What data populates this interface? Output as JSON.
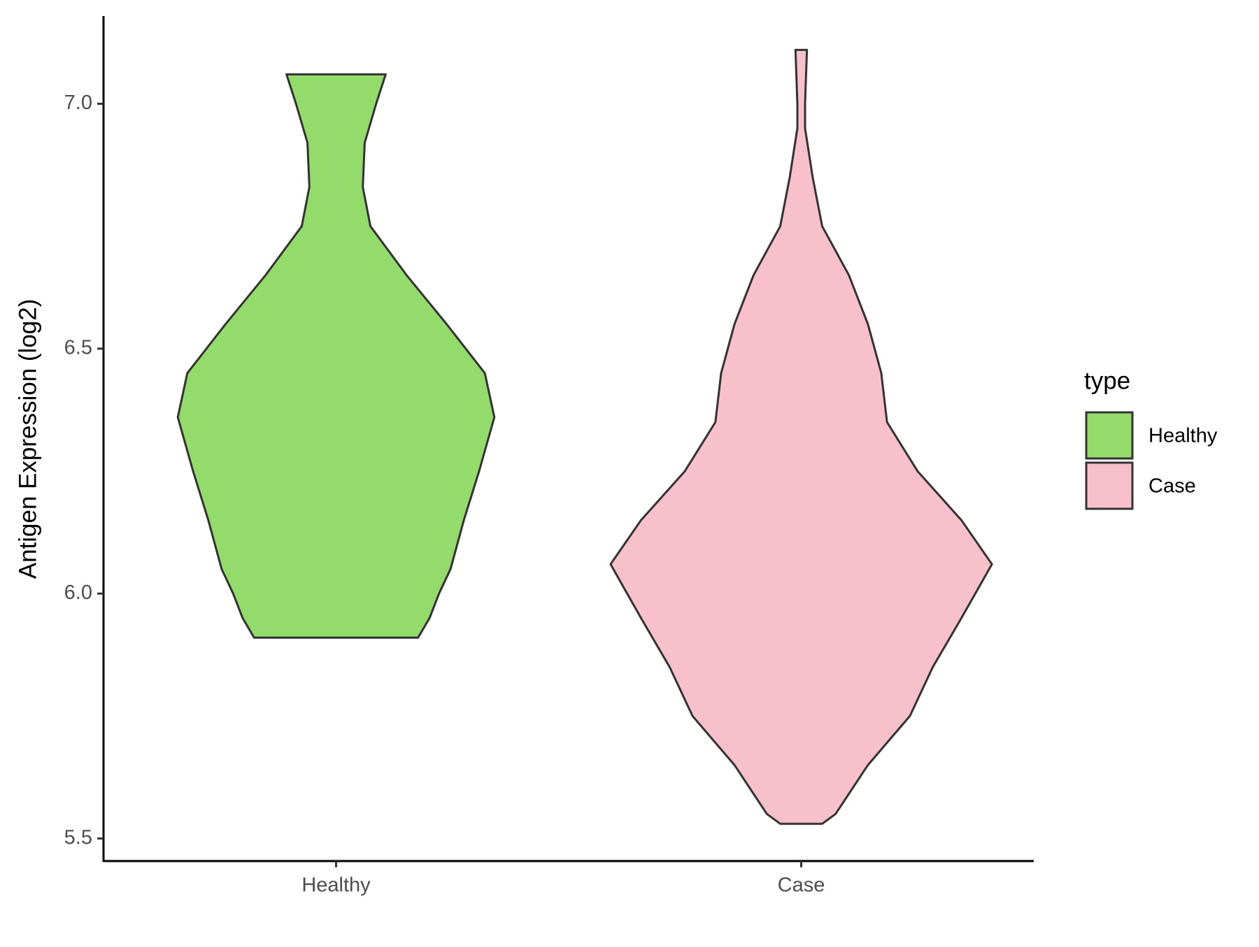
{
  "chart_data": {
    "type": "violin",
    "y_label": "Antigen Expression (log2)",
    "categories": [
      "Healthy",
      "Case"
    ],
    "ylim": [
      5.454,
      7.179
    ],
    "yticks": [
      5.5,
      {
        "value": 6.0,
        "label": "6.0"
      },
      6.5,
      {
        "value": 7.0,
        "label": "7.0"
      }
    ],
    "legend_title": "type",
    "legend_position": "right",
    "series": [
      {
        "name": "Healthy",
        "color": "#93db6a",
        "y": [
          5.91,
          5.95,
          6.0,
          6.05,
          6.15,
          6.25,
          6.36,
          6.45,
          6.55,
          6.65,
          6.75,
          6.83,
          6.92,
          7.0,
          7.06
        ],
        "widths": [
          0.43,
          0.49,
          0.54,
          0.6,
          0.67,
          0.75,
          0.83,
          0.78,
          0.58,
          0.37,
          0.18,
          0.14,
          0.15,
          0.21,
          0.26
        ]
      },
      {
        "name": "Case",
        "color": "#f7c0cb",
        "y": [
          5.53,
          5.55,
          5.65,
          5.75,
          5.85,
          5.95,
          6.06,
          6.15,
          6.25,
          6.35,
          6.45,
          6.55,
          6.65,
          6.75,
          6.85,
          6.95,
          7.0,
          7.11
        ],
        "widths": [
          0.11,
          0.18,
          0.35,
          0.57,
          0.69,
          0.84,
          1.0,
          0.84,
          0.61,
          0.45,
          0.42,
          0.35,
          0.25,
          0.11,
          0.06,
          0.02,
          0.02,
          0.03
        ]
      }
    ]
  }
}
